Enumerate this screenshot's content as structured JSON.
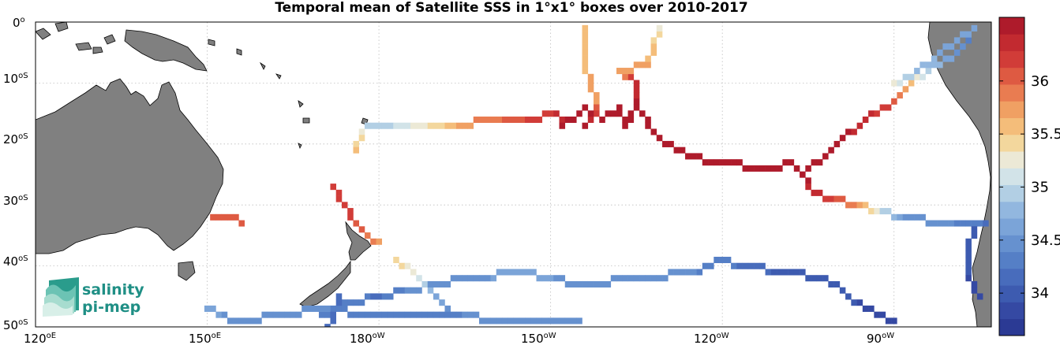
{
  "figure": {
    "title": "Temporal mean of Satellite SSS in 1°x1° boxes over 2010-2017",
    "lon_ticks": [
      {
        "label": "120",
        "unit": "oE"
      },
      {
        "label": "150",
        "unit": "oE"
      },
      {
        "label": "180",
        "unit": "oW"
      },
      {
        "label": "150",
        "unit": "oW"
      },
      {
        "label": "120",
        "unit": "oW"
      },
      {
        "label": "90",
        "unit": "oW"
      }
    ],
    "lat_ticks": [
      {
        "label": "0",
        "unit": "o"
      },
      {
        "label": "10",
        "unit": "oS"
      },
      {
        "label": "20",
        "unit": "oS"
      },
      {
        "label": "30",
        "unit": "oS"
      },
      {
        "label": "40",
        "unit": "oS"
      },
      {
        "label": "50",
        "unit": "oS"
      }
    ],
    "colorbar": {
      "ticks": [
        "34",
        "34.5",
        "35",
        "35.5",
        "36"
      ],
      "range": [
        33.6,
        36.6
      ],
      "colors": [
        "#2b3a94",
        "#3549a3",
        "#3d5bb0",
        "#486cbc",
        "#557fc6",
        "#6691cf",
        "#7ba4d8",
        "#92b7df",
        "#b2cfe4",
        "#d2e3e8",
        "#ece9d6",
        "#f3d79d",
        "#f4bd7a",
        "#f0a063",
        "#e97c51",
        "#de5a42",
        "#d13c38",
        "#c22a30",
        "#ae1b2b"
      ]
    },
    "logo": {
      "line1": "salinity",
      "line2": "pi-mep"
    }
  },
  "chart_data": {
    "type": "heatmap",
    "title": "Temporal mean of Satellite SSS in 1°x1° boxes over 2010-2017",
    "lon_range_east": [
      120,
      287
    ],
    "lat_range": [
      -50,
      0
    ],
    "color_scale_range": [
      33.6,
      36.6
    ],
    "colorbar_ticks": [
      34,
      34.5,
      35,
      35.5,
      36
    ],
    "tracks": [
      {
        "name_hint": "",
        "points": [
          [
            216,
            0.5,
            35.6
          ],
          [
            216,
            4,
            35.6
          ],
          [
            216,
            7,
            35.6
          ],
          [
            217,
            10,
            35.7
          ],
          [
            218,
            13,
            35.8
          ],
          [
            218,
            15,
            36.2
          ],
          [
            216,
            17,
            36.5
          ]
        ]
      },
      {
        "name_hint": "",
        "points": [
          [
            178,
            17,
            35.0
          ],
          [
            182,
            17,
            35.0
          ],
          [
            188,
            17,
            35.3
          ],
          [
            196,
            16.5,
            35.8
          ],
          [
            205,
            16,
            36.1
          ],
          [
            211,
            15,
            36.3
          ],
          [
            212,
            17,
            36.5
          ],
          [
            215,
            15,
            36.5
          ],
          [
            216,
            14,
            36.5
          ],
          [
            219,
            16,
            36.5
          ],
          [
            222,
            14,
            36.5
          ],
          [
            223,
            17,
            36.5
          ],
          [
            225,
            14,
            36.5
          ],
          [
            225,
            10,
            36.3
          ],
          [
            222,
            8,
            35.8
          ],
          [
            227,
            7,
            35.7
          ],
          [
            228,
            4,
            35.5
          ],
          [
            229,
            1,
            35.3
          ]
        ]
      },
      {
        "name_hint": "",
        "points": [
          [
            225,
            14,
            36.5
          ],
          [
            228,
            18,
            36.5
          ],
          [
            232,
            21,
            36.5
          ],
          [
            238,
            23,
            36.5
          ],
          [
            244,
            23.5,
            36.5
          ],
          [
            249,
            24,
            36.5
          ],
          [
            252,
            23,
            36.5
          ],
          [
            254,
            25,
            36.5
          ],
          [
            260,
            20,
            36.5
          ],
          [
            265,
            16,
            36.4
          ],
          [
            270,
            13,
            36.1
          ],
          [
            273,
            10,
            35.5
          ],
          [
            276,
            8,
            34.9
          ],
          [
            281,
            5,
            34.5
          ],
          [
            283,
            3,
            34.3
          ]
        ]
      },
      {
        "name_hint": "",
        "points": [
          [
            270,
            10,
            35.2
          ],
          [
            274,
            8,
            34.8
          ],
          [
            278,
            5,
            34.7
          ],
          [
            282,
            2,
            34.6
          ],
          [
            284,
            1,
            34.7
          ]
        ]
      },
      {
        "name_hint": "",
        "points": [
          [
            254,
            25,
            36.5
          ],
          [
            256,
            28,
            36.4
          ],
          [
            260,
            29,
            36.1
          ],
          [
            264,
            30,
            35.8
          ],
          [
            268,
            31,
            35.0
          ],
          [
            272,
            32,
            34.5
          ],
          [
            280,
            33,
            34.4
          ],
          [
            286,
            33,
            34.2
          ]
        ]
      },
      {
        "name_hint": "",
        "points": [
          [
            284,
            33,
            34.0
          ],
          [
            283,
            37,
            34.0
          ],
          [
            283,
            42,
            33.9
          ],
          [
            285,
            45,
            33.9
          ]
        ]
      },
      {
        "name_hint": "",
        "points": [
          [
            151,
            32,
            36.1
          ],
          [
            156,
            32.5,
            36.1
          ]
        ]
      },
      {
        "name_hint": "",
        "points": [
          [
            172,
            27,
            36.2
          ],
          [
            174,
            30,
            36.2
          ],
          [
            176,
            33,
            36.1
          ],
          [
            178,
            35,
            35.9
          ],
          [
            180,
            36,
            35.8
          ]
        ]
      },
      {
        "name_hint": "",
        "points": [
          [
            177,
            18,
            35.3
          ],
          [
            176,
            21,
            35.5
          ]
        ]
      },
      {
        "name_hint": "",
        "points": [
          [
            183,
            39,
            35.4
          ],
          [
            186,
            41,
            35.3
          ],
          [
            188,
            43,
            35.0
          ],
          [
            190,
            45,
            34.7
          ],
          [
            192,
            47,
            34.5
          ]
        ]
      },
      {
        "name_hint": "",
        "points": [
          [
            170,
            48,
            34.3
          ],
          [
            175,
            46,
            34.3
          ],
          [
            180,
            45,
            34.2
          ],
          [
            185,
            44,
            34.4
          ],
          [
            195,
            42,
            34.5
          ],
          [
            205,
            41,
            34.6
          ],
          [
            215,
            43,
            34.5
          ],
          [
            225,
            42,
            34.5
          ],
          [
            235,
            41,
            34.4
          ],
          [
            240,
            39,
            34.3
          ],
          [
            243,
            40,
            34.2
          ],
          [
            252,
            41,
            34.0
          ],
          [
            258,
            42,
            34.0
          ],
          [
            265,
            47,
            33.9
          ],
          [
            270,
            49,
            33.8
          ]
        ]
      },
      {
        "name_hint": "",
        "points": [
          [
            150,
            47,
            34.6
          ],
          [
            155,
            49,
            34.5
          ],
          [
            163,
            48,
            34.5
          ],
          [
            170,
            47,
            34.4
          ],
          [
            180,
            48,
            34.3
          ],
          [
            188,
            48,
            34.3
          ],
          [
            195,
            48,
            34.4
          ],
          [
            200,
            49,
            34.5
          ],
          [
            210,
            49,
            34.4
          ],
          [
            215,
            49,
            34.5
          ]
        ]
      },
      {
        "name_hint": "",
        "points": [
          [
            173,
            45,
            34.2
          ],
          [
            172,
            48,
            34.1
          ],
          [
            171,
            50,
            34.1
          ]
        ]
      }
    ]
  }
}
